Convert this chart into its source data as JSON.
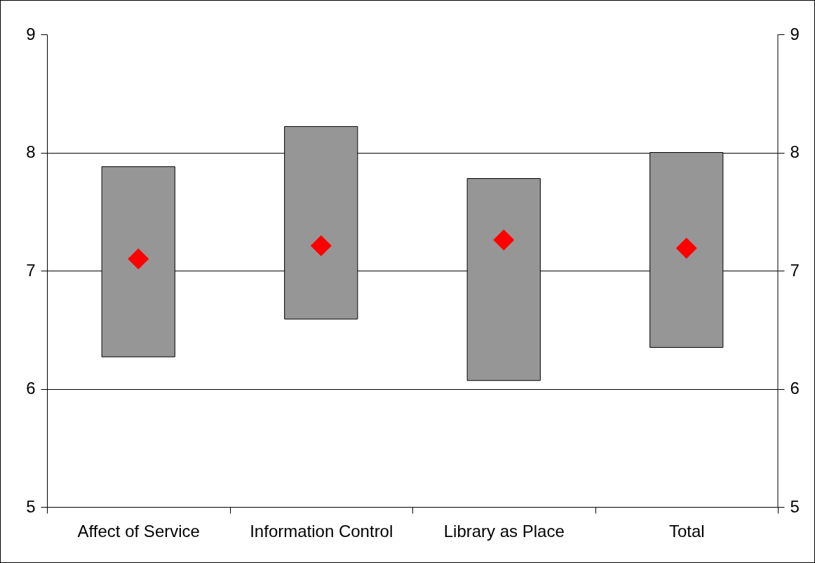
{
  "chart_data": {
    "type": "bar",
    "categories": [
      "Affect of Service",
      "Information Control",
      "Library as Place",
      "Total"
    ],
    "series": [
      {
        "color": "#969696",
        "base": [
          6.27,
          6.59,
          6.07,
          6.35
        ],
        "values": [
          1.61,
          1.63,
          1.71,
          1.65
        ]
      },
      {
        "type": "scatter",
        "color": "#ff0000",
        "x": [
          "Affect of Service",
          "Information Control",
          "Library as Place",
          "Total"
        ],
        "values": [
          7.1,
          7.21,
          7.26,
          7.19
        ]
      }
    ],
    "marker": "diamond",
    "ylim": [
      5,
      9
    ],
    "yticks": [
      5,
      6,
      7,
      8,
      9
    ],
    "y2lim": [
      5,
      9
    ],
    "y2ticks": [
      5,
      6,
      7,
      8,
      9
    ],
    "grid": "y"
  }
}
